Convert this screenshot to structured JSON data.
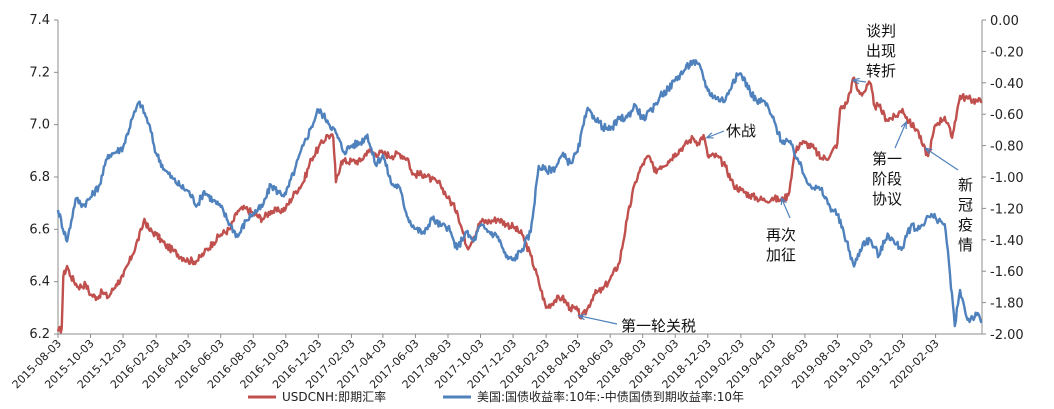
{
  "chart_data": {
    "type": "line",
    "title": "",
    "xlabel": "",
    "ylabel_left": "",
    "ylabel_right": "",
    "x_range": [
      "2015-08-03",
      "2020-04-30"
    ],
    "y_left_range": [
      6.2,
      7.4
    ],
    "y_left_ticks": [
      "6.2",
      "6.4",
      "6.6",
      "6.8",
      "7.0",
      "7.2",
      "7.4"
    ],
    "y_right_range": [
      -2.0,
      0.0
    ],
    "y_right_ticks": [
      "0.00",
      "-0.20",
      "-0.40",
      "-0.60",
      "-0.80",
      "-1.00",
      "-1.20",
      "-1.40",
      "-1.60",
      "-1.80",
      "-2.00"
    ],
    "x_ticks": [
      "2015-08-03",
      "2015-10-03",
      "2015-12-03",
      "2016-02-03",
      "2016-04-03",
      "2016-06-03",
      "2016-08-03",
      "2016-10-03",
      "2016-12-03",
      "2017-02-03",
      "2017-04-03",
      "2017-06-03",
      "2017-08-03",
      "2017-10-03",
      "2017-12-03",
      "2018-02-03",
      "2018-04-03",
      "2018-06-03",
      "2018-08-03",
      "2018-10-03",
      "2018-12-03",
      "2019-02-03",
      "2019-04-03",
      "2019-06-03",
      "2019-08-03",
      "2019-10-03",
      "2019-12-03",
      "2020-02-03"
    ],
    "grid": false,
    "legend_position": "bottom",
    "series": [
      {
        "name": "USDCNH:即期汇率",
        "axis": "left",
        "color": "#c0504d",
        "points": [
          [
            "2015-08-03",
            6.21
          ],
          [
            "2015-08-10",
            6.22
          ],
          [
            "2015-08-13",
            6.42
          ],
          [
            "2015-08-20",
            6.46
          ],
          [
            "2015-08-27",
            6.42
          ],
          [
            "2015-09-10",
            6.38
          ],
          [
            "2015-09-24",
            6.39
          ],
          [
            "2015-10-03",
            6.35
          ],
          [
            "2015-10-15",
            6.34
          ],
          [
            "2015-10-25",
            6.36
          ],
          [
            "2015-11-05",
            6.34
          ],
          [
            "2015-11-20",
            6.39
          ],
          [
            "2015-12-03",
            6.42
          ],
          [
            "2015-12-20",
            6.5
          ],
          [
            "2016-01-07",
            6.6
          ],
          [
            "2016-01-12",
            6.64
          ],
          [
            "2016-01-20",
            6.6
          ],
          [
            "2016-02-03",
            6.58
          ],
          [
            "2016-02-20",
            6.54
          ],
          [
            "2016-03-05",
            6.52
          ],
          [
            "2016-03-25",
            6.49
          ],
          [
            "2016-04-03",
            6.48
          ],
          [
            "2016-04-20",
            6.48
          ],
          [
            "2016-05-03",
            6.51
          ],
          [
            "2016-05-20",
            6.55
          ],
          [
            "2016-06-03",
            6.58
          ],
          [
            "2016-06-20",
            6.6
          ],
          [
            "2016-07-05",
            6.67
          ],
          [
            "2016-07-20",
            6.68
          ],
          [
            "2016-08-03",
            6.66
          ],
          [
            "2016-08-20",
            6.64
          ],
          [
            "2016-09-05",
            6.67
          ],
          [
            "2016-09-20",
            6.67
          ],
          [
            "2016-10-03",
            6.68
          ],
          [
            "2016-10-20",
            6.74
          ],
          [
            "2016-11-05",
            6.78
          ],
          [
            "2016-11-20",
            6.87
          ],
          [
            "2016-12-03",
            6.91
          ],
          [
            "2016-12-20",
            6.96
          ],
          [
            "2016-12-31",
            6.95
          ],
          [
            "2017-01-05",
            6.78
          ],
          [
            "2017-01-15",
            6.86
          ],
          [
            "2017-02-03",
            6.86
          ],
          [
            "2017-02-20",
            6.86
          ],
          [
            "2017-03-05",
            6.9
          ],
          [
            "2017-03-20",
            6.89
          ],
          [
            "2017-04-03",
            6.89
          ],
          [
            "2017-04-20",
            6.88
          ],
          [
            "2017-05-03",
            6.89
          ],
          [
            "2017-05-20",
            6.87
          ],
          [
            "2017-05-28",
            6.81
          ],
          [
            "2017-06-03",
            6.81
          ],
          [
            "2017-06-20",
            6.81
          ],
          [
            "2017-07-03",
            6.79
          ],
          [
            "2017-07-20",
            6.77
          ],
          [
            "2017-08-03",
            6.72
          ],
          [
            "2017-08-20",
            6.67
          ],
          [
            "2017-09-08",
            6.53
          ],
          [
            "2017-09-20",
            6.57
          ],
          [
            "2017-10-03",
            6.63
          ],
          [
            "2017-10-20",
            6.63
          ],
          [
            "2017-11-05",
            6.64
          ],
          [
            "2017-11-20",
            6.62
          ],
          [
            "2017-12-03",
            6.61
          ],
          [
            "2017-12-20",
            6.58
          ],
          [
            "2018-01-05",
            6.5
          ],
          [
            "2018-01-20",
            6.4
          ],
          [
            "2018-02-03",
            6.3
          ],
          [
            "2018-02-20",
            6.33
          ],
          [
            "2018-03-05",
            6.34
          ],
          [
            "2018-03-20",
            6.3
          ],
          [
            "2018-04-03",
            6.29
          ],
          [
            "2018-04-10",
            6.26
          ],
          [
            "2018-04-20",
            6.29
          ],
          [
            "2018-05-03",
            6.35
          ],
          [
            "2018-05-20",
            6.37
          ],
          [
            "2018-06-03",
            6.41
          ],
          [
            "2018-06-20",
            6.47
          ],
          [
            "2018-07-05",
            6.64
          ],
          [
            "2018-07-20",
            6.78
          ],
          [
            "2018-08-03",
            6.85
          ],
          [
            "2018-08-15",
            6.88
          ],
          [
            "2018-08-25",
            6.82
          ],
          [
            "2018-09-05",
            6.84
          ],
          [
            "2018-09-20",
            6.86
          ],
          [
            "2018-10-03",
            6.89
          ],
          [
            "2018-10-20",
            6.92
          ],
          [
            "2018-11-05",
            6.95
          ],
          [
            "2018-11-15",
            6.93
          ],
          [
            "2018-11-25",
            6.96
          ],
          [
            "2018-12-03",
            6.88
          ],
          [
            "2018-12-20",
            6.88
          ],
          [
            "2019-01-05",
            6.84
          ],
          [
            "2019-01-20",
            6.77
          ],
          [
            "2019-02-03",
            6.75
          ],
          [
            "2019-02-20",
            6.73
          ],
          [
            "2019-03-05",
            6.72
          ],
          [
            "2019-03-20",
            6.71
          ],
          [
            "2019-04-03",
            6.72
          ],
          [
            "2019-04-20",
            6.71
          ],
          [
            "2019-05-03",
            6.73
          ],
          [
            "2019-05-15",
            6.89
          ],
          [
            "2019-05-25",
            6.93
          ],
          [
            "2019-06-03",
            6.93
          ],
          [
            "2019-06-20",
            6.91
          ],
          [
            "2019-07-03",
            6.87
          ],
          [
            "2019-07-20",
            6.88
          ],
          [
            "2019-08-03",
            6.93
          ],
          [
            "2019-08-08",
            7.06
          ],
          [
            "2019-08-20",
            7.08
          ],
          [
            "2019-09-03",
            7.18
          ],
          [
            "2019-09-10",
            7.13
          ],
          [
            "2019-09-20",
            7.12
          ],
          [
            "2019-10-03",
            7.16
          ],
          [
            "2019-10-12",
            7.07
          ],
          [
            "2019-10-20",
            7.07
          ],
          [
            "2019-11-03",
            7.02
          ],
          [
            "2019-11-20",
            7.03
          ],
          [
            "2019-12-03",
            7.06
          ],
          [
            "2019-12-15",
            7.01
          ],
          [
            "2019-12-31",
            6.98
          ],
          [
            "2020-01-10",
            6.92
          ],
          [
            "2020-01-20",
            6.88
          ],
          [
            "2020-02-03",
            7.0
          ],
          [
            "2020-02-20",
            7.03
          ],
          [
            "2020-03-05",
            6.95
          ],
          [
            "2020-03-10",
            7.01
          ],
          [
            "2020-03-20",
            7.11
          ],
          [
            "2020-04-03",
            7.1
          ],
          [
            "2020-04-20",
            7.09
          ],
          [
            "2020-04-30",
            7.09
          ]
        ]
      },
      {
        "name": "美国:国债收益率:10年:-中债国债到期收益率:10年",
        "axis": "right",
        "color": "#4f81bd",
        "points": [
          [
            "2015-08-03",
            -1.21
          ],
          [
            "2015-08-20",
            -1.41
          ],
          [
            "2015-09-05",
            -1.14
          ],
          [
            "2015-09-20",
            -1.18
          ],
          [
            "2015-10-03",
            -1.13
          ],
          [
            "2015-10-20",
            -1.05
          ],
          [
            "2015-11-05",
            -0.86
          ],
          [
            "2015-11-20",
            -0.84
          ],
          [
            "2015-12-03",
            -0.81
          ],
          [
            "2015-12-20",
            -0.63
          ],
          [
            "2016-01-03",
            -0.52
          ],
          [
            "2016-01-20",
            -0.66
          ],
          [
            "2016-02-03",
            -0.85
          ],
          [
            "2016-02-20",
            -0.96
          ],
          [
            "2016-03-05",
            -1.01
          ],
          [
            "2016-03-20",
            -1.06
          ],
          [
            "2016-04-03",
            -1.09
          ],
          [
            "2016-04-20",
            -1.18
          ],
          [
            "2016-05-03",
            -1.09
          ],
          [
            "2016-05-20",
            -1.15
          ],
          [
            "2016-06-03",
            -1.19
          ],
          [
            "2016-06-20",
            -1.3
          ],
          [
            "2016-07-05",
            -1.38
          ],
          [
            "2016-07-20",
            -1.28
          ],
          [
            "2016-08-03",
            -1.23
          ],
          [
            "2016-08-20",
            -1.19
          ],
          [
            "2016-09-05",
            -1.05
          ],
          [
            "2016-09-20",
            -1.1
          ],
          [
            "2016-10-03",
            -1.11
          ],
          [
            "2016-10-20",
            -0.95
          ],
          [
            "2016-11-05",
            -0.8
          ],
          [
            "2016-11-20",
            -0.68
          ],
          [
            "2016-12-03",
            -0.57
          ],
          [
            "2016-12-20",
            -0.64
          ],
          [
            "2017-01-05",
            -0.72
          ],
          [
            "2017-01-20",
            -0.84
          ],
          [
            "2017-02-03",
            -0.8
          ],
          [
            "2017-02-20",
            -0.78
          ],
          [
            "2017-03-05",
            -0.73
          ],
          [
            "2017-03-20",
            -0.92
          ],
          [
            "2017-04-03",
            -0.86
          ],
          [
            "2017-04-20",
            -1.05
          ],
          [
            "2017-05-03",
            -1.06
          ],
          [
            "2017-05-20",
            -1.26
          ],
          [
            "2017-06-03",
            -1.33
          ],
          [
            "2017-06-20",
            -1.36
          ],
          [
            "2017-07-03",
            -1.26
          ],
          [
            "2017-07-20",
            -1.31
          ],
          [
            "2017-08-03",
            -1.32
          ],
          [
            "2017-08-20",
            -1.46
          ],
          [
            "2017-09-05",
            -1.35
          ],
          [
            "2017-09-20",
            -1.41
          ],
          [
            "2017-10-03",
            -1.31
          ],
          [
            "2017-10-20",
            -1.35
          ],
          [
            "2017-11-05",
            -1.38
          ],
          [
            "2017-11-20",
            -1.51
          ],
          [
            "2017-12-03",
            -1.53
          ],
          [
            "2017-12-20",
            -1.46
          ],
          [
            "2018-01-05",
            -1.35
          ],
          [
            "2018-01-20",
            -0.93
          ],
          [
            "2018-02-03",
            -0.96
          ],
          [
            "2018-02-20",
            -0.94
          ],
          [
            "2018-03-05",
            -0.86
          ],
          [
            "2018-03-20",
            -0.91
          ],
          [
            "2018-04-03",
            -0.84
          ],
          [
            "2018-04-20",
            -0.58
          ],
          [
            "2018-05-03",
            -0.61
          ],
          [
            "2018-05-20",
            -0.68
          ],
          [
            "2018-06-03",
            -0.7
          ],
          [
            "2018-06-20",
            -0.63
          ],
          [
            "2018-07-05",
            -0.62
          ],
          [
            "2018-07-20",
            -0.54
          ],
          [
            "2018-08-03",
            -0.63
          ],
          [
            "2018-08-20",
            -0.58
          ],
          [
            "2018-09-05",
            -0.48
          ],
          [
            "2018-09-20",
            -0.44
          ],
          [
            "2018-10-03",
            -0.38
          ],
          [
            "2018-10-20",
            -0.32
          ],
          [
            "2018-11-05",
            -0.26
          ],
          [
            "2018-11-20",
            -0.31
          ],
          [
            "2018-12-03",
            -0.45
          ],
          [
            "2018-12-20",
            -0.5
          ],
          [
            "2019-01-05",
            -0.51
          ],
          [
            "2019-01-20",
            -0.38
          ],
          [
            "2019-02-03",
            -0.34
          ],
          [
            "2019-02-20",
            -0.45
          ],
          [
            "2019-03-05",
            -0.52
          ],
          [
            "2019-03-20",
            -0.52
          ],
          [
            "2019-04-03",
            -0.62
          ],
          [
            "2019-04-20",
            -0.77
          ],
          [
            "2019-05-03",
            -0.77
          ],
          [
            "2019-05-20",
            -0.88
          ],
          [
            "2019-06-03",
            -1.0
          ],
          [
            "2019-06-20",
            -1.07
          ],
          [
            "2019-07-03",
            -1.08
          ],
          [
            "2019-07-20",
            -1.19
          ],
          [
            "2019-08-03",
            -1.24
          ],
          [
            "2019-08-20",
            -1.41
          ],
          [
            "2019-09-03",
            -1.57
          ],
          [
            "2019-09-20",
            -1.42
          ],
          [
            "2019-10-03",
            -1.4
          ],
          [
            "2019-10-20",
            -1.5
          ],
          [
            "2019-11-05",
            -1.36
          ],
          [
            "2019-11-20",
            -1.43
          ],
          [
            "2019-12-03",
            -1.45
          ],
          [
            "2019-12-20",
            -1.3
          ],
          [
            "2019-12-31",
            -1.34
          ],
          [
            "2020-01-20",
            -1.25
          ],
          [
            "2020-02-03",
            -1.26
          ],
          [
            "2020-02-20",
            -1.3
          ],
          [
            "2020-03-01",
            -1.62
          ],
          [
            "2020-03-10",
            -1.95
          ],
          [
            "2020-03-20",
            -1.72
          ],
          [
            "2020-04-03",
            -1.91
          ],
          [
            "2020-04-20",
            -1.88
          ],
          [
            "2020-04-30",
            -1.92
          ]
        ]
      }
    ],
    "annotations": [
      {
        "label": "谈判出现转折",
        "lines": [
          "谈判",
          "出现",
          "转折"
        ],
        "date": "2019-09-01",
        "value": 7.17,
        "axis": "left"
      },
      {
        "label": "休战",
        "lines": [
          "休战"
        ],
        "date": "2018-12-01",
        "value": 6.95,
        "axis": "left"
      },
      {
        "label": "第一阶段协议",
        "lines": [
          "第一",
          "阶段",
          "协议"
        ],
        "date": "2019-12-10",
        "value": 7.01,
        "axis": "left"
      },
      {
        "label": "新冠疫情",
        "lines": [
          "新",
          "冠",
          "疫",
          "情"
        ],
        "date": "2020-01-15",
        "value": 6.91,
        "axis": "left"
      },
      {
        "label": "再次加征",
        "lines": [
          "再次",
          "加征"
        ],
        "date": "2019-04-20",
        "value": 6.72,
        "axis": "left"
      },
      {
        "label": "第一轮关税",
        "lines": [
          "第一轮关税"
        ],
        "date": "2018-04-05",
        "value": 6.27,
        "axis": "left"
      }
    ]
  }
}
